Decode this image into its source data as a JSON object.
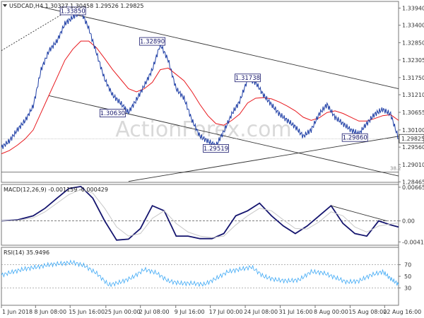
{
  "chart_data": [
    {
      "type": "candlestick",
      "title": "USDCAD,H4  1.30327 1.30458 1.29526 1.29825",
      "watermark": "ActionForex.com",
      "ylim": [
        1.2845,
        1.3415
      ],
      "yticks": [
        "1.33940",
        "1.33400",
        "1.32850",
        "1.32305",
        "1.31750",
        "1.31210",
        "1.30655",
        "1.30100",
        "1.29560",
        "1.29010",
        "1.28465"
      ],
      "current_price": "1.29825",
      "fib_label": "38.2",
      "fib_level": 1.2877,
      "ema_color": "#e8191e",
      "price_color": "#1f3fa6",
      "price_x": [
        0,
        2,
        4,
        6,
        8,
        10,
        12,
        14,
        16,
        18,
        20,
        22,
        24,
        26,
        28,
        30,
        32,
        34,
        36,
        38,
        40,
        42,
        44,
        46,
        48,
        50,
        52,
        54,
        56,
        58,
        60,
        62,
        64,
        66,
        68,
        70,
        72,
        74,
        76,
        78,
        80,
        82,
        84,
        86,
        88,
        90,
        92,
        94,
        96,
        98,
        100
      ],
      "price": [
        1.2955,
        1.2975,
        1.301,
        1.304,
        1.3085,
        1.32,
        1.326,
        1.329,
        1.3345,
        1.3365,
        1.3385,
        1.333,
        1.325,
        1.317,
        1.312,
        1.3095,
        1.3065,
        1.3105,
        1.315,
        1.32,
        1.328,
        1.323,
        1.314,
        1.311,
        1.304,
        1.299,
        1.2975,
        1.296,
        1.3005,
        1.306,
        1.31,
        1.317,
        1.316,
        1.312,
        1.309,
        1.306,
        1.304,
        1.302,
        1.299,
        1.301,
        1.306,
        1.309,
        1.305,
        1.303,
        1.301,
        1.2998,
        1.303,
        1.306,
        1.3075,
        1.306,
        1.2982
      ],
      "ema": [
        1.2935,
        1.2945,
        1.2962,
        1.2982,
        1.301,
        1.3065,
        1.312,
        1.3175,
        1.323,
        1.3265,
        1.329,
        1.329,
        1.3268,
        1.3235,
        1.32,
        1.317,
        1.314,
        1.313,
        1.314,
        1.316,
        1.32,
        1.3205,
        1.3185,
        1.3165,
        1.313,
        1.309,
        1.3055,
        1.303,
        1.3025,
        1.304,
        1.306,
        1.3095,
        1.311,
        1.3112,
        1.3108,
        1.3098,
        1.3085,
        1.307,
        1.305,
        1.304,
        1.3048,
        1.3065,
        1.307,
        1.3062,
        1.305,
        1.3038,
        1.3038,
        1.3046,
        1.3055,
        1.3058,
        1.304
      ],
      "box_labels": [
        {
          "text": "1.33850",
          "x": 18,
          "y": 1.3385
        },
        {
          "text": "1.32890",
          "x": 38,
          "y": 1.3289
        },
        {
          "text": "1.30630",
          "x": 28,
          "y": 1.3063
        },
        {
          "text": "1.31738",
          "x": 62,
          "y": 1.3174
        },
        {
          "text": "1.29519",
          "x": 54,
          "y": 1.2952
        },
        {
          "text": "1.29860",
          "x": 89,
          "y": 1.2986
        }
      ],
      "trendlines": [
        {
          "style": "solid",
          "x1": 10,
          "y1": 1.3398,
          "x2": 100,
          "y2": 1.314
        },
        {
          "style": "solid",
          "x1": 12,
          "y1": 1.3118,
          "x2": 100,
          "y2": 1.2865
        },
        {
          "style": "solid",
          "x1": 32,
          "y1": 1.2848,
          "x2": 100,
          "y2": 1.299
        },
        {
          "style": "dotted",
          "x1": 0,
          "y1": 1.326,
          "x2": 18,
          "y2": 1.3395
        }
      ]
    },
    {
      "type": "line",
      "title": "MACD(12,26,9) -0.001159 -0.000429",
      "ylim": [
        -0.0048,
        0.0072
      ],
      "yticks": [
        "0.006651",
        "0.00",
        "-0.004145"
      ],
      "series": [
        {
          "color": "#14146e",
          "x": [
            0,
            4,
            8,
            11,
            14,
            17,
            20,
            23,
            26,
            29,
            32,
            35,
            38,
            41,
            44,
            47,
            50,
            53,
            56,
            59,
            62,
            65,
            68,
            71,
            74,
            77,
            80,
            83,
            86,
            89,
            92,
            95,
            98,
            100
          ],
          "values": [
            0.0,
            0.0002,
            0.001,
            0.0025,
            0.0045,
            0.0064,
            0.0068,
            0.0045,
            0.0,
            -0.0038,
            -0.0036,
            -0.0015,
            0.003,
            0.002,
            -0.003,
            -0.003,
            -0.0035,
            -0.0035,
            -0.0025,
            0.001,
            0.002,
            0.0035,
            0.001,
            -0.001,
            -0.0025,
            -0.001,
            0.001,
            0.003,
            -0.0005,
            -0.0025,
            -0.003,
            0.0,
            -0.0008,
            -0.0012
          ]
        },
        {
          "color": "#c8c8c8",
          "x": [
            0,
            4,
            8,
            11,
            14,
            17,
            20,
            23,
            26,
            29,
            32,
            35,
            38,
            41,
            44,
            47,
            50,
            53,
            56,
            59,
            62,
            65,
            68,
            71,
            74,
            77,
            80,
            83,
            86,
            89,
            92,
            95,
            98,
            100
          ],
          "values": [
            0.0,
            0.0001,
            0.0006,
            0.0018,
            0.0035,
            0.0052,
            0.0062,
            0.0055,
            0.0025,
            -0.0012,
            -0.003,
            -0.0025,
            0.0005,
            0.002,
            -0.0005,
            -0.0022,
            -0.003,
            -0.0033,
            -0.003,
            -0.0008,
            0.001,
            0.0025,
            0.002,
            0.0002,
            -0.0015,
            -0.0016,
            -0.0002,
            0.0018,
            0.001,
            -0.0012,
            -0.0022,
            -0.001,
            -0.0006,
            -0.0004
          ]
        }
      ]
    },
    {
      "type": "line",
      "title": "RSI(14) 35.9496",
      "ylim": [
        0,
        100
      ],
      "yticks": [
        "70",
        "50",
        "30"
      ],
      "series": [
        {
          "color": "#3fa9f5",
          "x": [
            0,
            3,
            6,
            9,
            12,
            15,
            18,
            21,
            24,
            27,
            30,
            33,
            36,
            39,
            42,
            45,
            48,
            51,
            54,
            57,
            60,
            63,
            66,
            69,
            72,
            75,
            78,
            81,
            84,
            87,
            90,
            93,
            96,
            98,
            100
          ],
          "values": [
            52,
            58,
            63,
            66,
            70,
            72,
            74,
            68,
            55,
            35,
            40,
            48,
            62,
            56,
            42,
            38,
            38,
            36,
            46,
            58,
            62,
            66,
            50,
            44,
            42,
            44,
            58,
            56,
            48,
            40,
            42,
            52,
            58,
            46,
            36
          ]
        }
      ]
    }
  ],
  "x_labels": [
    "1 Jun 2018",
    "8 Jun 08:00",
    "15 Jun 16:00",
    "25 Jun 00:00",
    "2 Jul 08:00",
    "9 Jul 16:00",
    "17 Jul 00:00",
    "24 Jul 08:00",
    "31 Jul 16:00",
    "8 Aug 00:00",
    "15 Aug 08:00",
    "22 Aug 16:00"
  ]
}
